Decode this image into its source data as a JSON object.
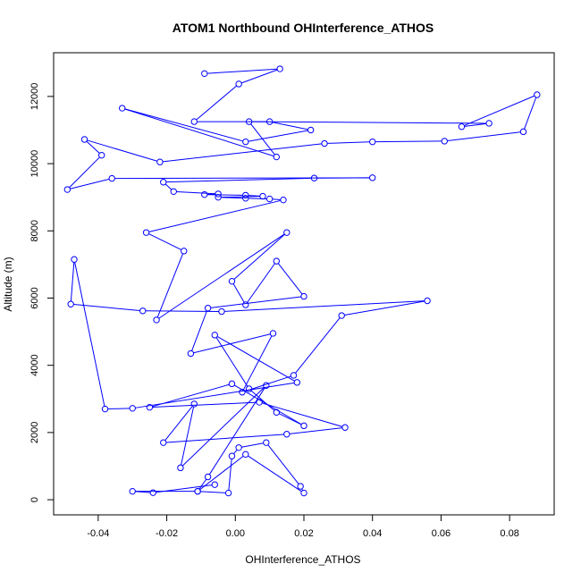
{
  "chart_data": {
    "type": "line",
    "title": "ATOM1 Northbound OHInterference_ATHOS",
    "xlabel": "OHInterference_ATHOS",
    "ylabel": "Altitude (m)",
    "xlim": [
      -0.053,
      0.093
    ],
    "ylim": [
      -450,
      13300
    ],
    "xticks": [
      -0.04,
      -0.02,
      0.0,
      0.02,
      0.04,
      0.06,
      0.08
    ],
    "xtick_labels": [
      "-0.04",
      "-0.02",
      "0.00",
      "0.02",
      "0.04",
      "0.06",
      "0.08"
    ],
    "yticks": [
      0,
      2000,
      4000,
      6000,
      8000,
      10000,
      12000
    ],
    "ytick_labels": [
      "0",
      "2000",
      "4000",
      "6000",
      "8000",
      "10000",
      "12000"
    ],
    "grid": false,
    "legend": "none",
    "series": [
      {
        "color": "#0000ff",
        "marker": "open-circle",
        "x": [
          -0.009,
          0.013,
          0.001,
          -0.012,
          0.01,
          0.022,
          0.003,
          -0.033,
          0.012,
          0.004,
          0.074,
          0.066,
          0.088,
          0.084,
          0.061,
          0.04,
          0.026,
          -0.022,
          -0.044,
          -0.039,
          -0.049,
          -0.036,
          0.04,
          0.023,
          -0.021,
          -0.018,
          -0.005,
          -0.009,
          0.003,
          0.008,
          -0.005,
          0.003,
          0.01,
          0.014,
          -0.026,
          -0.015,
          -0.023,
          0.015,
          -0.001,
          0.003,
          0.012,
          0.02,
          -0.008,
          -0.013,
          0.011,
          0.002,
          0.017,
          0.031,
          0.056,
          -0.004,
          -0.027,
          -0.048,
          -0.047,
          -0.038,
          -0.03,
          0.018,
          -0.006,
          0.004,
          0.012,
          0.02,
          -0.001,
          -0.025,
          0.007,
          0.032,
          0.015,
          -0.021,
          -0.012,
          -0.016,
          0.009,
          -0.008,
          -0.011,
          -0.002,
          -0.001,
          0.001,
          0.009,
          0.019,
          0.02,
          0.003,
          -0.011,
          -0.03,
          -0.024,
          -0.006
        ],
        "y": [
          12680,
          12820,
          12370,
          11250,
          11250,
          11000,
          10650,
          11650,
          10200,
          11250,
          11200,
          11100,
          12050,
          10950,
          10670,
          10650,
          10600,
          10050,
          10720,
          10250,
          9230,
          9560,
          9580,
          9570,
          9450,
          9170,
          9100,
          9080,
          9060,
          9030,
          9000,
          8970,
          8950,
          8920,
          7950,
          7400,
          5350,
          7950,
          6500,
          5800,
          7100,
          6050,
          5700,
          4350,
          4950,
          3200,
          3700,
          5480,
          5920,
          5600,
          5620,
          5820,
          7150,
          2700,
          2720,
          3490,
          4900,
          3300,
          2600,
          2200,
          3450,
          2750,
          2900,
          2150,
          1950,
          1700,
          2850,
          950,
          3400,
          680,
          250,
          200,
          1300,
          1550,
          1700,
          400,
          200,
          1350,
          250,
          250,
          210,
          450
        ]
      }
    ]
  }
}
